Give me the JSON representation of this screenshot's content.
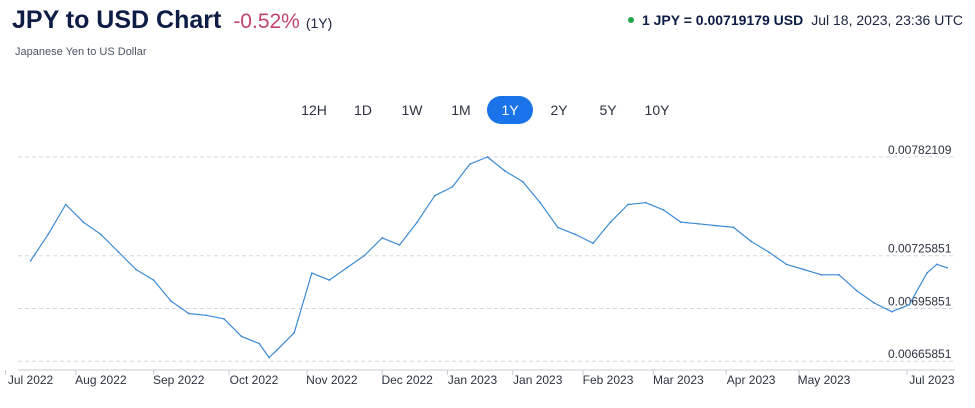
{
  "header": {
    "title": "JPY to USD Chart",
    "change": "-0.52%",
    "period": "(1Y)",
    "subtitle": "Japanese Yen to US Dollar",
    "rate": "1 JPY = 0.00719179 USD",
    "timestamp": "Jul 18, 2023, 23:36 UTC",
    "status_color": "#22a447",
    "change_color": "#c2446a"
  },
  "tabs": [
    {
      "label": "12H",
      "active": false
    },
    {
      "label": "1D",
      "active": false
    },
    {
      "label": "1W",
      "active": false
    },
    {
      "label": "1M",
      "active": false
    },
    {
      "label": "1Y",
      "active": true
    },
    {
      "label": "2Y",
      "active": false
    },
    {
      "label": "5Y",
      "active": false
    },
    {
      "label": "10Y",
      "active": false
    }
  ],
  "chart_data": {
    "type": "line",
    "title": "",
    "xlabel": "",
    "ylabel": "",
    "ylim": [
      0.00662,
      0.00786
    ],
    "grid": "horizontal dashed",
    "line_color": "#3d8bd4",
    "yticks": [
      0.00782109,
      0.00725851,
      0.00695851,
      0.00665851
    ],
    "ytick_labels": [
      "0.00782109",
      "0.00725851",
      "0.00695851",
      "0.00665851"
    ],
    "xtick_labels": [
      "Jul 2022",
      "Aug 2022",
      "Sep 2022",
      "Oct 2022",
      "Nov 2022",
      "Dec 2022",
      "Jan 2023",
      "Jan 2023",
      "Feb 2023",
      "Mar 2023",
      "Apr 2023",
      "May 2023",
      "Jul 2023"
    ],
    "x": [
      "2022-07-18",
      "2022-07-25",
      "2022-08-01",
      "2022-08-08",
      "2022-08-15",
      "2022-08-22",
      "2022-08-29",
      "2022-09-05",
      "2022-09-12",
      "2022-09-19",
      "2022-09-26",
      "2022-10-03",
      "2022-10-10",
      "2022-10-17",
      "2022-10-21",
      "2022-10-24",
      "2022-10-31",
      "2022-11-07",
      "2022-11-14",
      "2022-11-21",
      "2022-11-28",
      "2022-12-05",
      "2022-12-12",
      "2022-12-19",
      "2022-12-26",
      "2023-01-02",
      "2023-01-09",
      "2023-01-16",
      "2023-01-23",
      "2023-01-30",
      "2023-02-06",
      "2023-02-13",
      "2023-02-20",
      "2023-02-27",
      "2023-03-06",
      "2023-03-13",
      "2023-03-20",
      "2023-03-27",
      "2023-04-03",
      "2023-04-10",
      "2023-04-17",
      "2023-04-24",
      "2023-05-01",
      "2023-05-08",
      "2023-05-15",
      "2023-05-22",
      "2023-05-29",
      "2023-06-05",
      "2023-06-12",
      "2023-06-19",
      "2023-06-26",
      "2023-07-03",
      "2023-07-10",
      "2023-07-14",
      "2023-07-18"
    ],
    "series": [
      {
        "values": [
          0.00723,
          0.00738,
          0.00755,
          0.00745,
          0.00738,
          0.00728,
          0.00718,
          0.00712,
          0.007,
          0.00693,
          0.00692,
          0.0069,
          0.0068,
          0.00676,
          0.00668,
          0.00672,
          0.00682,
          0.00716,
          0.00712,
          0.00719,
          0.00726,
          0.00736,
          0.00732,
          0.00745,
          0.0076,
          0.00765,
          0.00778,
          0.00782,
          0.00774,
          0.00768,
          0.00756,
          0.00742,
          0.00738,
          0.00733,
          0.00745,
          0.00755,
          0.00756,
          0.00752,
          0.00745,
          0.00744,
          0.00743,
          0.00742,
          0.00734,
          0.00728,
          0.00721,
          0.00718,
          0.00715,
          0.00715,
          0.00706,
          0.00699,
          0.00694,
          0.00698,
          0.00716,
          0.00721,
          0.00719
        ]
      }
    ]
  }
}
